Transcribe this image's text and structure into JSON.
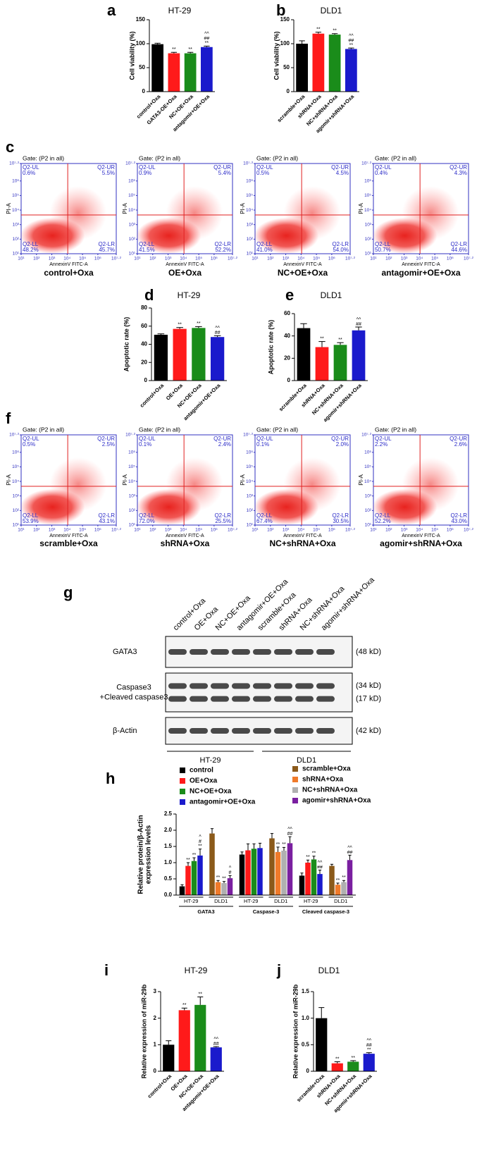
{
  "chart_data": [
    {
      "type": "bar",
      "panel": "a",
      "title": "HT-29",
      "ylabel": "Cell viability (%)",
      "categories": [
        "control+Oxa",
        "GATA3-OE+Oxa",
        "NC+OE+Oxa",
        "antagomir+OE+Oxa"
      ],
      "values": [
        99,
        80,
        80,
        93
      ],
      "errors": [
        2,
        2,
        2,
        2
      ],
      "colors": [
        "#000000",
        "#ff1a1a",
        "#1a8c1a",
        "#1a1acc"
      ],
      "annotations": [
        null,
        [
          "**"
        ],
        [
          "**"
        ],
        [
          "^^",
          "##",
          "**"
        ]
      ],
      "ylim": [
        0,
        150
      ],
      "yticks": [
        0,
        50,
        100,
        150
      ]
    },
    {
      "type": "bar",
      "panel": "b",
      "title": "DLD1",
      "ylabel": "Cell viability (%)",
      "categories": [
        "scramble+Oxa",
        "shRNA+Oxa",
        "NC+shRNA+Oxa",
        "agomir+shRNA+Oxa"
      ],
      "values": [
        100,
        121,
        119,
        89
      ],
      "errors": [
        6,
        3,
        2,
        2
      ],
      "colors": [
        "#000000",
        "#ff1a1a",
        "#1a8c1a",
        "#1a1acc"
      ],
      "annotations": [
        null,
        [
          "**"
        ],
        [
          "**"
        ],
        [
          "^^",
          "##",
          "**"
        ]
      ],
      "ylim": [
        0,
        150
      ],
      "yticks": [
        0,
        50,
        100,
        150
      ]
    },
    {
      "type": "flow",
      "panel": "c",
      "gate": "Gate: (P2 in all)",
      "xlabel": "AnnexinV FITC-A",
      "ylabel": "PI-A",
      "log": true,
      "xlim": [
        10,
        15848932
      ],
      "ylim": [
        10,
        15848932
      ],
      "xticks": [
        {
          "value": 10,
          "label": "10¹"
        },
        {
          "value": 100,
          "label": "10²"
        },
        {
          "value": 1000,
          "label": "10³"
        },
        {
          "value": 10000,
          "label": "10⁴"
        },
        {
          "value": 100000,
          "label": "10⁵"
        },
        {
          "value": 1000000,
          "label": "10⁶"
        },
        {
          "value": 15848932,
          "label": "10⁷·²"
        }
      ],
      "yticks": [
        {
          "value": 10,
          "label": "10¹"
        },
        {
          "value": 100,
          "label": "10²"
        },
        {
          "value": 1000,
          "label": "10³"
        },
        {
          "value": 10000,
          "label": "10⁴"
        },
        {
          "value": 100000,
          "label": "10⁵"
        },
        {
          "value": 1000000,
          "label": "10⁶"
        },
        {
          "value": 15848932,
          "label": "10⁷·²"
        }
      ],
      "plots": [
        {
          "caption": "control+Oxa",
          "quadrants": [
            "Q2-UL",
            "Q2-UR",
            "Q2-LL",
            "Q2-LR"
          ],
          "percents": [
            "0.6%",
            "5.5%",
            "48.2%",
            "45.7%"
          ]
        },
        {
          "caption": "OE+Oxa",
          "quadrants": [
            "Q2-UL",
            "Q2-UR",
            "Q2-LL",
            "Q2-LR"
          ],
          "percents": [
            "0.9%",
            "5.4%",
            "41.5%",
            "52.2%"
          ]
        },
        {
          "caption": "NC+OE+Oxa",
          "quadrants": [
            "Q2-UL",
            "Q2-UR",
            "Q2-LL",
            "Q2-LR"
          ],
          "percents": [
            "0.5%",
            "4.5%",
            "41.0%",
            "54.0%"
          ]
        },
        {
          "caption": "antagomir+OE+Oxa",
          "quadrants": [
            "Q2-UL",
            "Q2-UR",
            "Q2-LL",
            "Q2-LR"
          ],
          "percents": [
            "0.4%",
            "4.3%",
            "50.7%",
            "44.6%"
          ]
        }
      ]
    },
    {
      "type": "bar",
      "panel": "d",
      "title": "HT-29",
      "ylabel": "Apoptotic rate (%)",
      "categories": [
        "control+Oxa",
        "OE+Oxa",
        "NC+OE+Oxa",
        "antagomir+OE+Oxa"
      ],
      "values": [
        50.5,
        57,
        58,
        48
      ],
      "errors": [
        1,
        1.5,
        1.5,
        1.5
      ],
      "colors": [
        "#000000",
        "#ff1a1a",
        "#1a8c1a",
        "#1a1acc"
      ],
      "annotations": [
        null,
        [
          "**"
        ],
        [
          "**"
        ],
        [
          "^^",
          "##"
        ]
      ],
      "ylim": [
        0,
        80
      ],
      "yticks": [
        0,
        20,
        40,
        60,
        80
      ]
    },
    {
      "type": "bar",
      "panel": "e",
      "title": "DLD1",
      "ylabel": "Apoptotic rate (%)",
      "categories": [
        "scramble+Oxa",
        "shRNA+Oxa",
        "NC+shRNA+Oxa",
        "agomir+shRNA+Oxa"
      ],
      "values": [
        47,
        30,
        32,
        45
      ],
      "errors": [
        4,
        5,
        2,
        3
      ],
      "colors": [
        "#000000",
        "#ff1a1a",
        "#1a8c1a",
        "#1a1acc"
      ],
      "annotations": [
        null,
        [
          "**"
        ],
        [
          "**"
        ],
        [
          "^^",
          "##"
        ]
      ],
      "ylim": [
        0,
        60
      ],
      "yticks": [
        0,
        20,
        40,
        60
      ]
    },
    {
      "type": "flow",
      "panel": "f",
      "gate": "Gate: (P2 in all)",
      "xlabel": "AnnexinV FITC-A",
      "ylabel": "PI-A",
      "log": true,
      "xlim": [
        10,
        15848932
      ],
      "ylim": [
        10,
        15848932
      ],
      "xticks": [
        {
          "value": 10,
          "label": "10¹"
        },
        {
          "value": 100,
          "label": "10²"
        },
        {
          "value": 1000,
          "label": "10³"
        },
        {
          "value": 10000,
          "label": "10⁴"
        },
        {
          "value": 100000,
          "label": "10⁵"
        },
        {
          "value": 1000000,
          "label": "10⁶"
        },
        {
          "value": 15848932,
          "label": "10⁷·²"
        }
      ],
      "yticks": [
        {
          "value": 10,
          "label": "10¹"
        },
        {
          "value": 100,
          "label": "10²"
        },
        {
          "value": 1000,
          "label": "10³"
        },
        {
          "value": 10000,
          "label": "10⁴"
        },
        {
          "value": 100000,
          "label": "10⁵"
        },
        {
          "value": 1000000,
          "label": "10⁶"
        },
        {
          "value": 15848932,
          "label": "10⁷·²"
        }
      ],
      "plots": [
        {
          "caption": "scramble+Oxa",
          "quadrants": [
            "Q2-UL",
            "Q2-UR",
            "Q2-LL",
            "Q2-LR"
          ],
          "percents": [
            "0.5%",
            "2.5%",
            "53.9%",
            "43.1%"
          ]
        },
        {
          "caption": "shRNA+Oxa",
          "quadrants": [
            "Q2-UL",
            "Q2-UR",
            "Q2-LL",
            "Q2-LR"
          ],
          "percents": [
            "0.1%",
            "2.4%",
            "72.0%",
            "25.5%"
          ]
        },
        {
          "caption": "NC+shRNA+Oxa",
          "quadrants": [
            "Q2-UL",
            "Q2-UR",
            "Q2-LL",
            "Q2-LR"
          ],
          "percents": [
            "0.1%",
            "2.0%",
            "67.4%",
            "30.5%"
          ]
        },
        {
          "caption": "agomir+shRNA+Oxa",
          "quadrants": [
            "Q2-UL",
            "Q2-UR",
            "Q2-LL",
            "Q2-LR"
          ],
          "percents": [
            "2.2%",
            "2.6%",
            "52.2%",
            "43.0%"
          ]
        }
      ]
    },
    {
      "type": "blot",
      "panel": "g",
      "lanes": [
        "control+Oxa",
        "OE+Oxa",
        "NC+OE+Oxa",
        "antagomir+OE+Oxa",
        "scramble+Oxa",
        "shRNA+Oxa",
        "NC+shRNA+Oxa",
        "agomir+shRNA+Oxa"
      ],
      "rows": [
        {
          "label": [
            "GATA3"
          ],
          "sizes": [
            "(48 kD)"
          ]
        },
        {
          "label": [
            "Caspase3",
            "+Cleaved caspase3"
          ],
          "sizes": [
            "(34 kD)",
            "(17 kD)"
          ]
        },
        {
          "label": [
            "β-Actin"
          ],
          "sizes": [
            "(42 kD)"
          ]
        }
      ],
      "groups": [
        "HT-29",
        "DLD1"
      ]
    },
    {
      "type": "grouped_bar",
      "panel": "h",
      "ylabel": [
        "Relative protein/β-Actin",
        "expression levels"
      ],
      "categories": [
        "HT-29",
        "DLD1",
        "HT-29",
        "DLD1",
        "HT-29",
        "DLD1"
      ],
      "groups": [
        "GATA3",
        "Caspase-3",
        "Cleaved caspase-3"
      ],
      "ylim": [
        0,
        2.5
      ],
      "yticks": [
        {
          "value": 0,
          "label": "0.0"
        },
        0.5,
        {
          "value": 1,
          "label": "1.0"
        },
        1.5,
        {
          "value": 2,
          "label": "2.0"
        },
        2.5
      ],
      "series": [
        {
          "name": "control",
          "color": "#000000",
          "values": [
            0.27,
            null,
            1.25,
            null,
            0.6,
            null
          ],
          "errors": [
            0.05,
            null,
            0.08,
            null,
            0.08,
            null
          ]
        },
        {
          "name": "OE+Oxa",
          "color": "#ff1a1a",
          "values": [
            0.9,
            null,
            1.38,
            null,
            1.0,
            null
          ],
          "errors": [
            0.1,
            null,
            0.2,
            null,
            0.08,
            null
          ],
          "annotations": [
            [
              "**"
            ],
            null,
            null,
            null,
            [
              "**"
            ],
            null
          ]
        },
        {
          "name": "NC+OE+Oxa",
          "color": "#1a8c1a",
          "values": [
            1.05,
            null,
            1.43,
            null,
            1.1,
            null
          ],
          "errors": [
            0.1,
            null,
            0.15,
            null,
            0.1,
            null
          ],
          "annotations": [
            [
              "**"
            ],
            null,
            null,
            null,
            [
              "**"
            ],
            null
          ]
        },
        {
          "name": "antagomir+OE+Oxa",
          "color": "#1a1acc",
          "values": [
            1.22,
            null,
            1.45,
            null,
            0.65,
            null
          ],
          "errors": [
            0.2,
            null,
            0.15,
            null,
            0.12,
            null
          ],
          "annotations": [
            [
              "^",
              "#",
              "**"
            ],
            null,
            null,
            null,
            [
              "^^",
              "##"
            ],
            null
          ]
        },
        {
          "name": "scramble+Oxa",
          "color": "#8b5a1a",
          "values": [
            null,
            1.9,
            null,
            1.75,
            null,
            0.9
          ],
          "errors": [
            null,
            0.15,
            null,
            0.15,
            null,
            0.05
          ]
        },
        {
          "name": "shRNA+Oxa",
          "color": "#f07a2a",
          "values": [
            null,
            0.4,
            null,
            1.33,
            null,
            0.32
          ],
          "errors": [
            null,
            0.05,
            null,
            0.15,
            null,
            0.05
          ],
          "annotations": [
            null,
            [
              "**"
            ],
            null,
            [
              "**"
            ],
            null,
            [
              "**"
            ]
          ]
        },
        {
          "name": "NC+shRNA+Oxa",
          "color": "#b0b0b0",
          "values": [
            null,
            0.37,
            null,
            1.37,
            null,
            0.4
          ],
          "errors": [
            null,
            0.05,
            null,
            0.1,
            null,
            0.05
          ],
          "annotations": [
            null,
            [
              "**"
            ],
            null,
            [
              "**"
            ],
            null,
            [
              "**"
            ]
          ]
        },
        {
          "name": "agomir+shRNA+Oxa",
          "color": "#7a1fa0",
          "values": [
            null,
            0.52,
            null,
            1.6,
            null,
            1.08
          ],
          "errors": [
            null,
            0.08,
            null,
            0.2,
            null,
            0.15
          ],
          "annotations": [
            null,
            [
              "^",
              "#"
            ],
            null,
            [
              "^^",
              "##"
            ],
            null,
            [
              "^^",
              "##"
            ]
          ]
        }
      ],
      "legend": "top"
    },
    {
      "type": "bar",
      "panel": "i",
      "title": "HT-29",
      "ylabel": "Relative expression of miR-29b",
      "categories": [
        "control+Oxa",
        "OE+Oxa",
        "NC+OE+Oxa",
        "antagomir+OE+Oxa"
      ],
      "values": [
        1.0,
        2.3,
        2.5,
        0.9
      ],
      "errors": [
        0.15,
        0.08,
        0.3,
        0.03
      ],
      "colors": [
        "#000000",
        "#ff1a1a",
        "#1a8c1a",
        "#1a1acc"
      ],
      "annotations": [
        null,
        [
          "**"
        ],
        [
          "**"
        ],
        [
          "^^",
          "##"
        ]
      ],
      "ylim": [
        0,
        3
      ],
      "yticks": [
        0,
        1,
        2,
        3
      ]
    },
    {
      "type": "bar",
      "panel": "j",
      "title": "DLD1",
      "ylabel": "Relative expression of miR-29b",
      "categories": [
        "scramble+Oxa",
        "shRNA+Oxa",
        "NC+shRNA+Oxa",
        "agomir+shRNA+Oxa"
      ],
      "values": [
        1.0,
        0.15,
        0.18,
        0.33
      ],
      "errors": [
        0.2,
        0.03,
        0.02,
        0.02
      ],
      "colors": [
        "#000000",
        "#ff1a1a",
        "#1a8c1a",
        "#1a1acc"
      ],
      "annotations": [
        null,
        [
          "**"
        ],
        [
          "**"
        ],
        [
          "^^",
          "##",
          "**"
        ]
      ],
      "ylim": [
        0,
        1.5
      ],
      "yticks": [
        0,
        0.5,
        {
          "value": 1,
          "label": "1.0"
        },
        1.5
      ]
    }
  ]
}
